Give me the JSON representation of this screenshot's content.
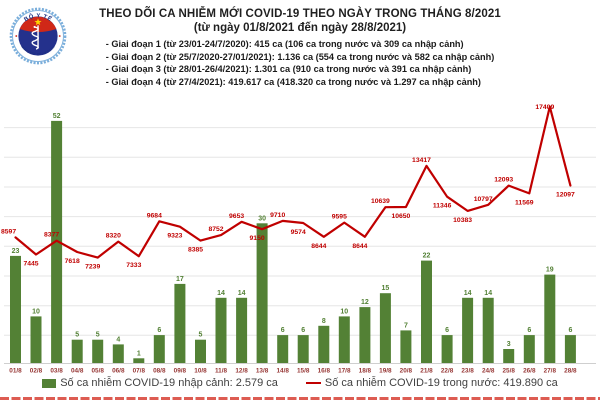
{
  "header": {
    "title": "THEO DÕI CA NHIỄM MỚI COVID-19 THEO NGÀY TRONG THÁNG 8/2021",
    "subtitle": "(từ ngày 01/8/2021 đến ngày 28/8/2021)",
    "phases": [
      "- Giai đoạn 1 (từ 23/01-24/7/2020): 415 ca (106 ca trong nước và 309 ca nhập cảnh)",
      "- Giai đoạn 2 (từ 25/7/2020-27/01/2021): 1.136 ca (554 ca trong nước và 582 ca nhập cảnh)",
      "- Giai đoạn 3 (từ 28/01-26/4/2021): 1.301 ca (910 ca trong nước và 391 ca nhập cảnh)",
      "- Giai đoạn 4 (từ 27/4/2021): 419.617 ca (418.320 ca trong nước và 1.297 ca nhập cảnh)"
    ],
    "logo": {
      "top_text": "BỘ Y TẾ",
      "bottom_text": "MINISTRY OF HEALTH"
    }
  },
  "chart_data": {
    "type": "bar+line combo",
    "title": "THEO DÕI CA NHIỄM MỚI COVID-19 THEO NGÀY TRONG THÁNG 8/2021",
    "categories": [
      "01/8",
      "02/8",
      "03/8",
      "04/8",
      "05/8",
      "06/8",
      "07/8",
      "08/8",
      "09/8",
      "10/8",
      "11/8",
      "12/8",
      "13/8",
      "14/8",
      "15/8",
      "16/8",
      "17/8",
      "18/8",
      "19/8",
      "20/8",
      "21/8",
      "22/8",
      "23/8",
      "24/8",
      "25/8",
      "26/8",
      "27/8",
      "28/8"
    ],
    "series": [
      {
        "name": "Số ca nhiễm COVID-19 nhập cảnh",
        "type": "bar",
        "color": "#538135",
        "values": [
          23,
          10,
          52,
          5,
          5,
          4,
          1,
          6,
          17,
          5,
          14,
          14,
          30,
          6,
          6,
          8,
          10,
          12,
          15,
          7,
          22,
          6,
          14,
          14,
          3,
          6,
          19,
          6
        ]
      },
      {
        "name": "Số ca nhiễm COVID-19 trong nước",
        "type": "line",
        "color": "#c00000",
        "values": [
          8597,
          7445,
          8377,
          7618,
          7239,
          8320,
          7333,
          9684,
          9323,
          8385,
          8752,
          9653,
          9150,
          9710,
          9574,
          8644,
          9595,
          8644,
          10639,
          10650,
          13417,
          11346,
          10383,
          10797,
          12093,
          11569,
          17409,
          12097
        ]
      }
    ],
    "legend": [
      {
        "label": "Số ca nhiễm COVID-19 nhập cảnh: 2.579 ca",
        "swatch": "square",
        "color": "#538135"
      },
      {
        "label": "Số ca nhiễm COVID-19 trong nước: 419.890 ca",
        "swatch": "line",
        "color": "#c00000"
      }
    ],
    "data_labels": true,
    "grid": true,
    "grid_step_line_axis": 2000,
    "line_axis_max": 18000,
    "bar_axis_max": 57,
    "axes_hidden": true,
    "legend_position": "bottom",
    "category_label_color": "#963634"
  },
  "colors": {
    "bar_green": "#538135",
    "line_red": "#c00000",
    "date_label": "#963634",
    "gridline": "#e6e6e6",
    "bottom_strip": "#dd5c52",
    "logo_navy": "#24318c",
    "logo_light_blue": "#7aaedb",
    "logo_red": "#d02818",
    "logo_star_yellow": "#ffd400"
  }
}
